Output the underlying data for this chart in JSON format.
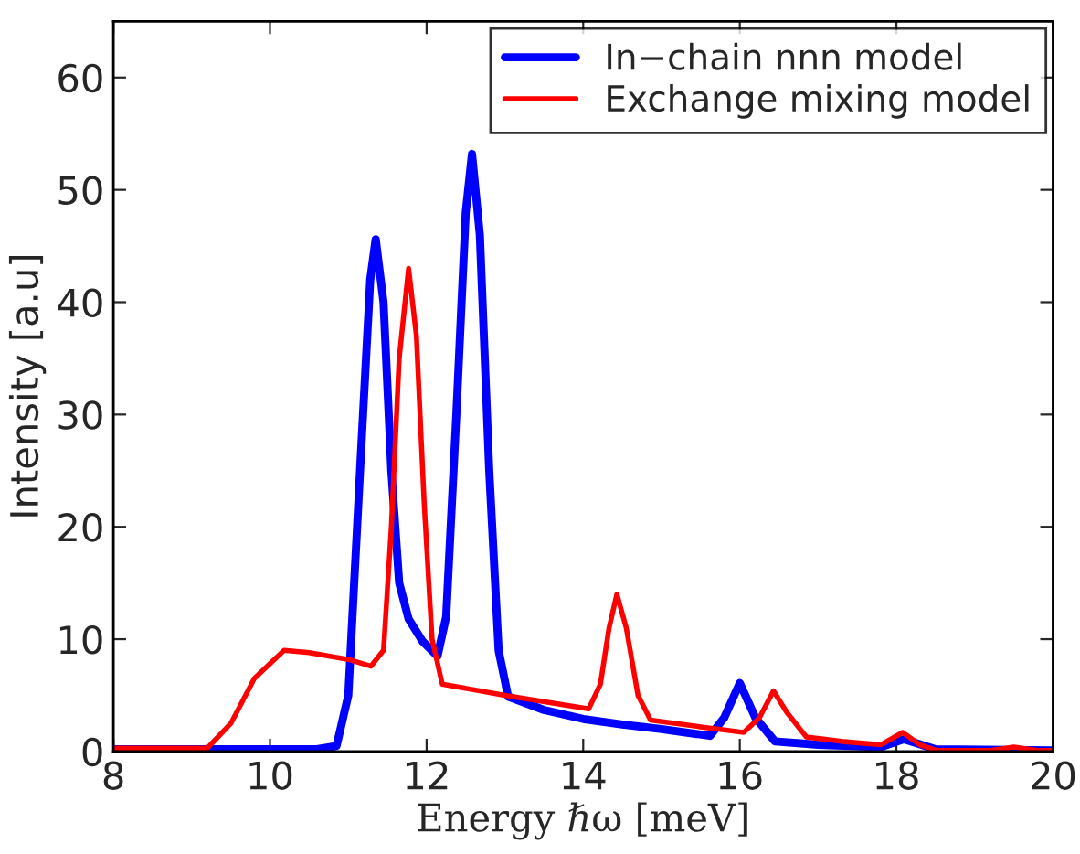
{
  "chart_data": {
    "type": "line",
    "xlabel": "Energy ℏω [meV]",
    "ylabel": "Intensity [a.u]",
    "xlim": [
      8,
      20
    ],
    "ylim": [
      0,
      65
    ],
    "xticks": [
      8,
      10,
      12,
      14,
      16,
      18,
      20
    ],
    "yticks": [
      0,
      10,
      20,
      30,
      40,
      50,
      60
    ],
    "grid": false,
    "legend": "top right",
    "marker": "none",
    "line_style": "solid",
    "series": [
      {
        "name": "In−chain nnn model",
        "color": "#0000ff",
        "x": [
          8,
          10.6,
          10.85,
          11.0,
          11.15,
          11.28,
          11.35,
          11.45,
          11.55,
          11.65,
          11.77,
          11.95,
          12.14,
          12.25,
          12.38,
          12.5,
          12.58,
          12.68,
          12.8,
          12.92,
          13.04,
          13.5,
          14.0,
          14.5,
          15.0,
          15.62,
          15.8,
          16.0,
          16.2,
          16.45,
          17.0,
          17.8,
          18.1,
          18.5,
          20
        ],
        "values": [
          0.2,
          0.2,
          0.5,
          5,
          25,
          42,
          45.6,
          40,
          25,
          15,
          11.8,
          9.8,
          8.5,
          12,
          30,
          48,
          53.2,
          46,
          25,
          9,
          4.9,
          3.7,
          2.9,
          2.4,
          2.0,
          1.4,
          3,
          6.1,
          3,
          0.9,
          0.6,
          0.4,
          1.1,
          0.2,
          0.1
        ]
      },
      {
        "name": "Exchange mixing model",
        "color": "#ff0000",
        "x": [
          8,
          9.2,
          9.5,
          9.8,
          10.18,
          10.5,
          11.0,
          11.29,
          11.45,
          11.55,
          11.65,
          11.77,
          11.87,
          11.97,
          12.07,
          12.2,
          13.0,
          14.07,
          14.22,
          14.33,
          14.43,
          14.55,
          14.7,
          14.86,
          15.5,
          16.05,
          16.25,
          16.43,
          16.6,
          16.85,
          17.3,
          17.8,
          18.08,
          18.3,
          18.51,
          19.2,
          19.5,
          19.8,
          20
        ],
        "values": [
          0.3,
          0.3,
          2.5,
          6.5,
          9.0,
          8.8,
          8.2,
          7.6,
          9,
          20,
          35,
          43.0,
          37,
          22,
          10,
          6.0,
          5.0,
          3.8,
          6,
          11,
          14.0,
          11,
          5,
          2.8,
          2.2,
          1.7,
          3,
          5.4,
          3.5,
          1.3,
          0.9,
          0.6,
          1.7,
          0.6,
          0.1,
          0.1,
          0.4,
          0.1,
          0.1
        ]
      }
    ]
  }
}
